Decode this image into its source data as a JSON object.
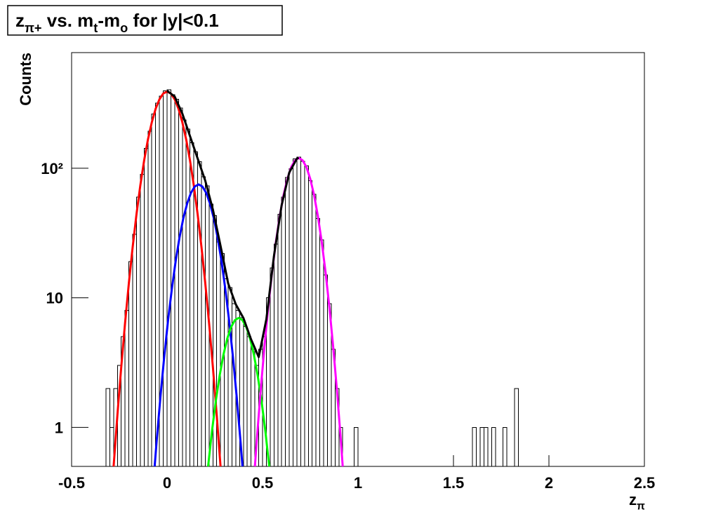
{
  "chart_data": {
    "type": "histogram",
    "title": [
      {
        "text": "z"
      },
      {
        "text": "π+",
        "sub": true
      },
      {
        "text": " vs. m"
      },
      {
        "text": "t",
        "sub": true
      },
      {
        "text": "-m"
      },
      {
        "text": "o",
        "sub": true
      },
      {
        "text": " for |y|<0.1"
      }
    ],
    "xlabel": [
      {
        "text": "z"
      },
      {
        "text": "π",
        "sub": true
      }
    ],
    "ylabel": "Counts",
    "color": "#000000",
    "yscale": "log",
    "xlim": [
      -0.5,
      2.5
    ],
    "ylim": [
      0.5,
      780
    ],
    "xticks": [
      -0.5,
      0,
      0.5,
      1,
      1.5,
      2,
      2.5
    ],
    "yticks": [
      1,
      10,
      {
        "value": 100,
        "label": "10²"
      }
    ],
    "bins": [
      -0.5,
      -0.48,
      -0.46,
      -0.44,
      -0.42,
      -0.4,
      -0.38,
      -0.36,
      -0.34,
      -0.32,
      -0.3,
      -0.28,
      -0.26,
      -0.24,
      -0.22,
      -0.2,
      -0.18,
      -0.16,
      -0.14,
      -0.12,
      -0.1,
      -0.08,
      -0.06,
      -0.04,
      -0.02,
      0,
      0.02,
      0.04,
      0.06,
      0.08,
      0.1,
      0.12,
      0.14,
      0.16,
      0.18,
      0.2,
      0.22,
      0.24,
      0.26,
      0.28,
      0.3,
      0.32,
      0.34,
      0.36,
      0.38,
      0.4,
      0.42,
      0.44,
      0.46,
      0.48,
      0.5,
      0.52,
      0.54,
      0.56,
      0.58,
      0.6,
      0.62,
      0.64,
      0.66,
      0.68,
      0.7,
      0.72,
      0.74,
      0.76,
      0.78,
      0.8,
      0.82,
      0.84,
      0.86,
      0.88,
      0.9,
      0.92,
      0.94,
      0.96,
      0.98,
      1,
      1.02,
      1.04,
      1.06,
      1.08,
      1.1,
      1.12,
      1.14,
      1.16,
      1.18,
      1.2,
      1.22,
      1.24,
      1.26,
      1.28,
      1.3,
      1.32,
      1.34,
      1.36,
      1.38,
      1.4,
      1.42,
      1.44,
      1.46,
      1.48,
      1.5,
      1.52,
      1.54,
      1.56,
      1.58,
      1.6,
      1.62,
      1.64,
      1.66,
      1.68,
      1.7,
      1.72,
      1.74,
      1.76,
      1.78,
      1.8,
      1.82,
      1.84,
      1.86,
      1.88,
      1.9,
      1.92,
      1.94,
      1.96,
      1.98,
      2,
      2.02,
      2.04,
      2.06,
      2.08,
      2.1,
      2.12,
      2.14,
      2.16,
      2.18,
      2.2,
      2.22,
      2.24,
      2.26,
      2.28,
      2.3,
      2.32,
      2.34,
      2.36,
      2.38,
      2.4,
      2.42,
      2.44,
      2.46,
      2.48,
      2.5
    ],
    "counts": [
      0,
      0,
      0,
      0,
      0,
      0,
      0,
      0,
      0,
      2,
      1,
      2,
      3,
      5,
      8,
      19,
      31,
      60,
      90,
      142,
      193,
      262,
      318,
      360,
      395,
      402,
      370,
      340,
      292,
      236,
      200,
      157,
      134,
      112,
      86,
      73,
      53,
      43,
      27,
      22,
      14,
      12,
      9,
      8,
      7,
      6,
      5,
      4,
      3,
      4,
      5,
      10,
      17,
      26,
      44,
      60,
      85,
      99,
      118,
      122,
      113,
      104,
      80,
      63,
      41,
      28,
      15,
      9,
      4,
      2,
      1,
      0,
      0,
      0,
      1,
      0,
      0,
      0,
      0,
      0,
      0,
      0,
      0,
      0,
      0,
      0,
      0,
      0,
      0,
      0,
      0,
      0,
      0,
      0,
      0,
      0,
      0,
      0,
      0,
      0,
      0,
      0,
      0,
      0,
      0,
      1,
      0,
      1,
      1,
      0,
      1,
      0,
      0,
      1,
      0,
      0,
      2,
      0,
      0,
      0,
      0,
      0,
      0,
      0,
      0,
      0,
      0,
      0,
      0,
      0,
      0,
      0,
      0,
      0,
      0,
      0,
      0,
      0,
      0,
      0,
      0,
      0,
      0,
      0,
      0,
      0,
      0,
      0,
      0,
      0
    ],
    "curves": [
      {
        "color": "#ff0000",
        "x": [
          -0.28,
          -0.26,
          -0.24,
          -0.22,
          -0.2,
          -0.18,
          -0.16,
          -0.14,
          -0.12,
          -0.1,
          -0.08,
          -0.06,
          -0.04,
          -0.02,
          0,
          0.02,
          0.04,
          0.06,
          0.08,
          0.1,
          0.12,
          0.14,
          0.16,
          0.18,
          0.2,
          0.22,
          0.24,
          0.26,
          0.28
        ],
        "values": [
          0.5,
          1.25,
          2.92,
          6.38,
          13.0,
          24.8,
          44.3,
          73.8,
          115,
          167,
          226,
          287,
          340,
          377,
          390,
          377,
          340,
          287,
          226,
          167,
          115,
          73.8,
          44.3,
          24.8,
          13.0,
          6.38,
          2.92,
          1.25,
          0.5
        ]
      },
      {
        "color": "#0000ff",
        "x": [
          -0.065,
          -0.055,
          -0.035,
          -0.015,
          0.005,
          0.025,
          0.045,
          0.065,
          0.085,
          0.105,
          0.125,
          0.145,
          0.165,
          0.185,
          0.205,
          0.225,
          0.245,
          0.265,
          0.285,
          0.305,
          0.325,
          0.345,
          0.365,
          0.385,
          0.395
        ],
        "values": [
          0.5,
          0.77,
          1.7,
          3.5,
          6.65,
          11.7,
          19.2,
          29.1,
          41.0,
          53.3,
          64.5,
          72.2,
          75,
          72.2,
          64.5,
          53.3,
          41.0,
          29.1,
          19.2,
          11.7,
          6.65,
          3.5,
          1.7,
          0.77,
          0.5
        ]
      },
      {
        "color": "#00ff00",
        "x": [
          0.215,
          0.235,
          0.255,
          0.275,
          0.295,
          0.315,
          0.335,
          0.355,
          0.375,
          0.395,
          0.415,
          0.435,
          0.455,
          0.475,
          0.495,
          0.515,
          0.535
        ],
        "values": [
          0.5,
          0.93,
          1.59,
          2.49,
          3.62,
          4.83,
          5.93,
          6.72,
          7,
          6.72,
          5.93,
          4.83,
          3.62,
          2.49,
          1.59,
          0.93,
          0.5
        ]
      },
      {
        "color": "#ff00ff",
        "x": [
          0.46,
          0.47,
          0.49,
          0.51,
          0.53,
          0.55,
          0.57,
          0.59,
          0.61,
          0.63,
          0.65,
          0.67,
          0.69,
          0.71,
          0.73,
          0.75,
          0.77,
          0.79,
          0.81,
          0.83,
          0.85,
          0.87,
          0.89,
          0.91,
          0.92
        ],
        "values": [
          0.5,
          0.8,
          1.91,
          4.19,
          8.48,
          15.8,
          27.0,
          42.6,
          61.9,
          82.7,
          102,
          115,
          120,
          115,
          102,
          82.7,
          61.9,
          42.6,
          27.0,
          15.8,
          8.48,
          4.19,
          1.91,
          0.8,
          0.5
        ]
      },
      {
        "color": "#000000",
        "x": [
          0,
          0.04,
          0.08,
          0.12,
          0.16,
          0.2,
          0.24,
          0.28,
          0.32,
          0.36,
          0.4,
          0.44,
          0.48,
          0.52,
          0.56,
          0.6,
          0.64,
          0.68,
          0.69
        ],
        "values": [
          396,
          357,
          264,
          177,
          119,
          80.1,
          48.0,
          25.2,
          12.9,
          8.9,
          6.98,
          4.78,
          3.49,
          6.83,
          21.1,
          51.8,
          92.6,
          118.8,
          120
        ]
      }
    ]
  }
}
